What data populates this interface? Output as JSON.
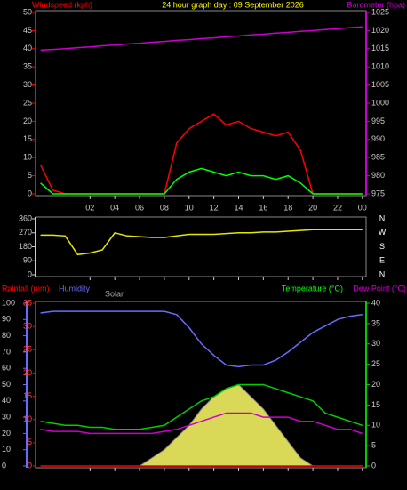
{
  "chart_data": [
    {
      "type": "line",
      "title": "24 hour graph day : 09 September 2026",
      "y_label": "Windspeed (kph)",
      "y2_label": "Barometer (hpa)",
      "x": [
        -2,
        -1,
        0,
        1,
        2,
        3,
        4,
        5,
        6,
        7,
        8,
        9,
        10,
        11,
        12,
        13,
        14,
        15,
        16,
        17,
        18,
        19,
        20,
        21,
        22,
        23,
        24
      ],
      "xlim": [
        -2.4,
        24.3
      ],
      "xticks": [
        {
          "value": 2,
          "label": "02"
        },
        {
          "value": 4,
          "label": "04"
        },
        {
          "value": 6,
          "label": "06"
        },
        {
          "value": 8,
          "label": "08"
        },
        10,
        12,
        14,
        16,
        18,
        20,
        22,
        {
          "value": 24,
          "label": "00"
        }
      ],
      "ylim": [
        0,
        50
      ],
      "yticks": [
        0,
        5,
        10,
        15,
        20,
        25,
        30,
        35,
        40,
        45,
        50
      ],
      "y2lim": [
        975,
        1025
      ],
      "y2ticks": [
        975,
        980,
        985,
        990,
        995,
        1000,
        1005,
        1010,
        1015,
        1020,
        1025
      ],
      "series": [
        {
          "color": "#ff0000",
          "values": [
            8,
            1,
            0,
            0,
            0,
            0,
            0,
            0,
            0,
            0,
            0,
            14,
            18,
            20,
            22,
            19,
            20,
            18,
            17,
            16,
            17,
            12,
            0,
            0,
            0,
            0,
            0
          ]
        },
        {
          "color": "#00ff00",
          "values": [
            3,
            0,
            0,
            0,
            0,
            0,
            0,
            0,
            0,
            0,
            0,
            4,
            6,
            7,
            6,
            5,
            6,
            5,
            5,
            4,
            5,
            3,
            0,
            0,
            0,
            0,
            0
          ]
        },
        {
          "color": "#cc00cc",
          "axis": "y2",
          "values": [
            1014.6,
            1014.8,
            1015.0,
            1015.3,
            1015.5,
            1015.8,
            1016.0,
            1016.3,
            1016.5,
            1016.8,
            1017.0,
            1017.3,
            1017.5,
            1017.8,
            1018.0,
            1018.3,
            1018.5,
            1018.8,
            1019.0,
            1019.3,
            1019.5,
            1019.8,
            1020.0,
            1020.3,
            1020.5,
            1020.8,
            1021.0
          ]
        }
      ]
    },
    {
      "type": "line",
      "x": [
        -2,
        -1,
        0,
        1,
        2,
        3,
        4,
        5,
        6,
        7,
        8,
        9,
        10,
        11,
        12,
        13,
        14,
        15,
        16,
        17,
        18,
        19,
        20,
        21,
        22,
        23,
        24
      ],
      "xlim": [
        -2.4,
        24.3
      ],
      "ylim": [
        0,
        360
      ],
      "yticks": [
        0,
        90,
        180,
        270,
        360
      ],
      "compass": [
        "N",
        "W",
        "S",
        "E",
        "N"
      ],
      "series": [
        {
          "color": "#e6e600",
          "values": [
            255,
            255,
            250,
            130,
            140,
            160,
            270,
            250,
            245,
            240,
            240,
            250,
            260,
            260,
            260,
            265,
            270,
            270,
            275,
            275,
            280,
            285,
            290,
            290,
            290,
            290,
            290
          ]
        }
      ]
    },
    {
      "type": "line",
      "x": [
        -2,
        -1,
        0,
        1,
        2,
        3,
        4,
        5,
        6,
        7,
        8,
        9,
        10,
        11,
        12,
        13,
        14,
        15,
        16,
        17,
        18,
        19,
        20,
        21,
        22,
        23,
        24
      ],
      "xlim": [
        -2.4,
        24.3
      ],
      "ylim": [
        0,
        100
      ],
      "yticks": [
        0,
        10,
        20,
        30,
        40,
        50,
        60,
        70,
        80,
        90,
        100
      ],
      "rainlim": [
        0,
        35
      ],
      "rainticks": [
        0,
        5,
        10,
        15,
        20,
        25,
        30,
        35
      ],
      "y2lim": [
        0,
        40
      ],
      "y2ticks": [
        0,
        5,
        10,
        15,
        20,
        25,
        30,
        35,
        40
      ],
      "series": [
        {
          "name": "Solar",
          "color": "#ffff66",
          "axis": "y2",
          "area": true,
          "values": [
            0,
            0,
            0,
            0,
            0,
            0,
            0,
            0,
            0,
            2,
            4,
            7,
            10,
            14,
            17,
            19,
            20,
            17,
            14,
            10,
            6,
            2,
            0,
            0,
            0,
            0,
            0
          ]
        },
        {
          "name": "Rainfall (mm)",
          "color": "#ff0000",
          "axis": "rain",
          "values": [
            0,
            0,
            0,
            0,
            0,
            0,
            0,
            0,
            0,
            0,
            0,
            0,
            0,
            0,
            0,
            0,
            0,
            0,
            0,
            0,
            0,
            0,
            0,
            0,
            0,
            0,
            0
          ]
        },
        {
          "name": "Humidity",
          "color": "#6a6aff",
          "values": [
            94,
            95,
            95,
            95,
            95,
            95,
            95,
            95,
            95,
            95,
            95,
            93,
            85,
            75,
            68,
            62,
            61,
            62,
            62,
            65,
            70,
            76,
            82,
            86,
            90,
            92,
            93
          ]
        },
        {
          "name": "Temperature (°C)",
          "color": "#00cc00",
          "axis": "y2",
          "values": [
            11,
            10.5,
            10,
            10,
            9.5,
            9.5,
            9,
            9,
            9,
            9.5,
            10,
            12,
            14,
            16,
            17,
            19,
            20,
            20,
            20,
            19,
            18,
            17,
            16,
            13,
            12,
            11,
            10
          ]
        },
        {
          "name": "Dew Point (°C)",
          "color": "#cc00cc",
          "axis": "y2",
          "values": [
            9,
            8.5,
            8.5,
            8.5,
            8,
            8,
            8,
            8,
            8,
            8,
            8.5,
            9,
            10,
            11,
            12,
            13,
            13,
            13,
            12,
            12,
            12,
            11,
            11,
            10,
            9,
            9,
            8
          ]
        }
      ]
    }
  ]
}
